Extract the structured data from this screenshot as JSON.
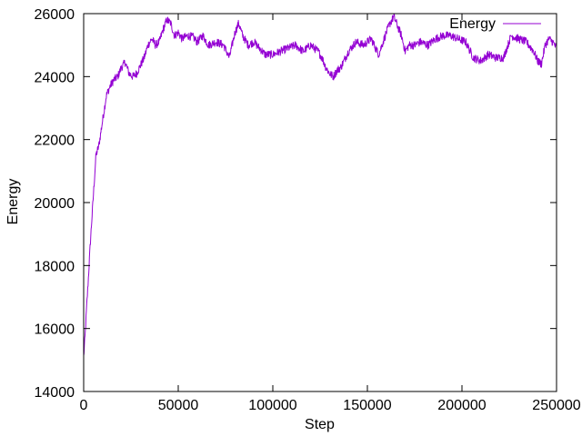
{
  "chart_data": {
    "type": "line",
    "title": "",
    "xlabel": "Step",
    "ylabel": "Energy",
    "xlim": [
      0,
      250000
    ],
    "ylim": [
      14000,
      26000
    ],
    "x_ticks": [
      0,
      50000,
      100000,
      150000,
      200000,
      250000
    ],
    "y_ticks": [
      14000,
      16000,
      18000,
      20000,
      22000,
      24000,
      26000
    ],
    "grid": false,
    "legend": {
      "position": "top-right"
    },
    "series": [
      {
        "name": "Energy",
        "color": "#9400d3",
        "x": [
          0,
          800,
          1500,
          2500,
          3500,
          5000,
          6500,
          8000,
          10000,
          12000,
          14000,
          16000,
          18000,
          20000,
          22000,
          24000,
          26000,
          28000,
          30000,
          32000,
          34000,
          36000,
          38000,
          40000,
          42000,
          44000,
          46000,
          48000,
          50000,
          52000,
          55000,
          58000,
          60000,
          63000,
          66000,
          70000,
          74000,
          77000,
          80000,
          82000,
          84000,
          87000,
          90000,
          93000,
          96000,
          100000,
          104000,
          108000,
          112000,
          116000,
          120000,
          124000,
          126000,
          128000,
          130000,
          132000,
          134000,
          136000,
          140000,
          144000,
          148000,
          152000,
          156000,
          160000,
          162000,
          164000,
          166000,
          168000,
          170000,
          172000,
          175000,
          178000,
          182000,
          186000,
          190000,
          194000,
          198000,
          202000,
          206000,
          210000,
          214000,
          218000,
          222000,
          226000,
          230000,
          234000,
          238000,
          240000,
          242000,
          244000,
          246000,
          248000,
          250000
        ],
        "y": [
          15100,
          15800,
          16600,
          17600,
          18700,
          20100,
          21500,
          21800,
          22600,
          23400,
          23700,
          23900,
          24000,
          24300,
          24450,
          24100,
          24000,
          24100,
          24350,
          24600,
          25000,
          25200,
          25000,
          25100,
          25500,
          25800,
          25700,
          25300,
          25400,
          25200,
          25300,
          25250,
          25100,
          25300,
          25000,
          25100,
          25000,
          24600,
          25400,
          25700,
          25300,
          25000,
          25100,
          24900,
          24700,
          24700,
          24800,
          24900,
          25000,
          24800,
          25000,
          24800,
          24600,
          24300,
          24100,
          24000,
          24200,
          24300,
          24800,
          25100,
          25000,
          25200,
          24700,
          25400,
          25700,
          25900,
          25600,
          25300,
          24800,
          25000,
          25000,
          25100,
          25000,
          25200,
          25300,
          25300,
          25200,
          25100,
          24600,
          24500,
          24700,
          24600,
          24600,
          25300,
          25200,
          25100,
          24800,
          24500,
          24400,
          25000,
          25200,
          25100,
          24900
        ]
      }
    ]
  }
}
